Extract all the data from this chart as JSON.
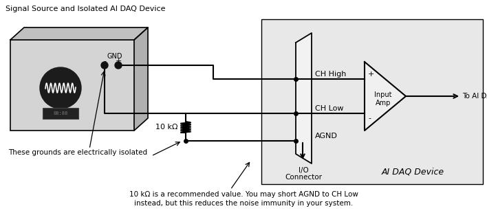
{
  "title": "Signal Source and Isolated AI DAQ Device",
  "background_color": "#ffffff",
  "daq_bg_color": "#e8e8e8",
  "box_face_color": "#d4d4d4",
  "box_top_color": "#c0c0c0",
  "box_right_color": "#b0b0b0",
  "line_color": "#000000",
  "bottom_note_line1": "10 kΩ is a recommended value. You may short AGND to CH Low",
  "bottom_note_line2": "instead, but this reduces the noise immunity in your system.",
  "label_ground": "These grounds are electrically isolated",
  "label_io_line1": "I/O",
  "label_io_line2": "Connector",
  "label_daq_device": "AI DAQ Device",
  "label_ch_high": "CH High",
  "label_ch_low": "CH Low",
  "label_agnd": "AGND",
  "label_resistor": "10 kΩ",
  "label_gnd": "GND",
  "label_amp_line1": "Input",
  "label_amp_line2": "Amp",
  "label_to_daq": "To AI DAQ",
  "label_plus": "+",
  "label_minus": "-"
}
